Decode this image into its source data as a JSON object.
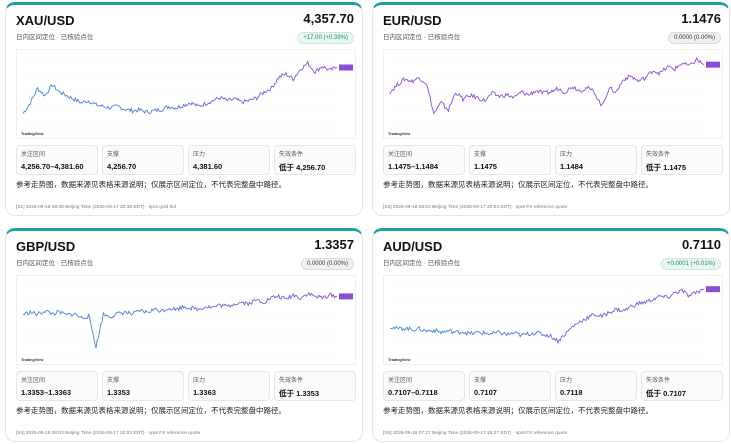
{
  "cards": [
    {
      "pair": "XAU/USD",
      "price": "4,357.70",
      "subtitle": "日内区间定位 · 已核验点位",
      "change": "+17.00 (+0.39%)",
      "change_state": "up",
      "stats": [
        {
          "label": "关注区间",
          "value": "4,256.70–4,381.60"
        },
        {
          "label": "支撑",
          "value": "4,256.70"
        },
        {
          "label": "压力",
          "value": "4,381.60"
        },
        {
          "label": "失效条件",
          "value": "低于 4,256.70"
        }
      ],
      "note": "参考走势图，数据来源见表格来源说明；仅展示区间定位，不代表完整盘中路径。",
      "footer": "[S1] 2026-09-18 08:38 Beijing Time (2026-09-17 20:38 EDT) · spot gold bid",
      "watermark": "TradingView",
      "trend": [
        0.2,
        0.35,
        0.55,
        0.45,
        0.6,
        0.5,
        0.45,
        0.4,
        0.35,
        0.38,
        0.32,
        0.3,
        0.28,
        0.3,
        0.26,
        0.24,
        0.25,
        0.22,
        0.24,
        0.26,
        0.3,
        0.28,
        0.32,
        0.35,
        0.3,
        0.34,
        0.38,
        0.42,
        0.38,
        0.4,
        0.36,
        0.38,
        0.42,
        0.5,
        0.55,
        0.7,
        0.75,
        0.68,
        0.82,
        0.9,
        0.78,
        0.86,
        0.8,
        0.84
      ],
      "line_color_start": "#3d8fd6",
      "line_color_end": "#8a4fd6"
    },
    {
      "pair": "EUR/USD",
      "price": "1.1476",
      "subtitle": "日内区间定位 · 已核验点位",
      "change": "0.0000 (0.00%)",
      "change_state": "flat",
      "stats": [
        {
          "label": "关注区间",
          "value": "1.1475–1.1484"
        },
        {
          "label": "支撑",
          "value": "1.1475"
        },
        {
          "label": "压力",
          "value": "1.1484"
        },
        {
          "label": "失效条件",
          "value": "低于 1.1475"
        }
      ],
      "note": "参考走势图，数据来源见表格来源说明；仅展示区间定位，不代表完整盘中路径。",
      "footer": "[S3] 2026-09-18 08:03 Beijing Time (2026-09-17 20:03 EDT) · spot FX reference quote",
      "watermark": "TradingView",
      "trend": [
        0.5,
        0.6,
        0.68,
        0.65,
        0.7,
        0.62,
        0.2,
        0.35,
        0.25,
        0.5,
        0.4,
        0.45,
        0.42,
        0.38,
        0.48,
        0.44,
        0.46,
        0.42,
        0.5,
        0.46,
        0.52,
        0.48,
        0.5,
        0.55,
        0.5,
        0.58,
        0.52,
        0.56,
        0.5,
        0.3,
        0.55,
        0.5,
        0.68,
        0.72,
        0.65,
        0.7,
        0.8,
        0.76,
        0.85,
        0.82,
        0.9,
        0.86,
        0.95,
        0.88
      ],
      "line_color_start": "#8a4fd6",
      "line_color_end": "#8a4fd6"
    },
    {
      "pair": "GBP/USD",
      "price": "1.3357",
      "subtitle": "日内区间定位 · 已核验点位",
      "change": "0.0000 (0.00%)",
      "change_state": "flat",
      "stats": [
        {
          "label": "关注区间",
          "value": "1.3353–1.3363"
        },
        {
          "label": "支撑",
          "value": "1.3353"
        },
        {
          "label": "压力",
          "value": "1.3363"
        },
        {
          "label": "失效条件",
          "value": "低于 1.3353"
        }
      ],
      "note": "参考走势图，数据来源见表格来源说明；仅展示区间定位，不代表完整盘中路径。",
      "footer": "[S4] 2026-09-18 08:03 Beijing Time (2026-09-17 20:03 EDT) · spot FX reference quote",
      "watermark": "TradingView",
      "trend": [
        0.55,
        0.58,
        0.55,
        0.6,
        0.56,
        0.58,
        0.54,
        0.56,
        0.5,
        0.53,
        0.1,
        0.55,
        0.52,
        0.56,
        0.58,
        0.55,
        0.6,
        0.58,
        0.62,
        0.6,
        0.64,
        0.62,
        0.66,
        0.64,
        0.62,
        0.66,
        0.65,
        0.68,
        0.66,
        0.7,
        0.72,
        0.7,
        0.75,
        0.72,
        0.78,
        0.8,
        0.76,
        0.82,
        0.78,
        0.84,
        0.8,
        0.78,
        0.82,
        0.8
      ],
      "line_color_start": "#3d8fd6",
      "line_color_end": "#8a4fd6"
    },
    {
      "pair": "AUD/USD",
      "price": "0.7110",
      "subtitle": "日内区间定位 · 已核验点位",
      "change": "+0.0001 (+0.01%)",
      "change_state": "up",
      "stats": [
        {
          "label": "关注区间",
          "value": "0.7107–0.7118"
        },
        {
          "label": "支撑",
          "value": "0.7107"
        },
        {
          "label": "压力",
          "value": "0.7118"
        },
        {
          "label": "失效条件",
          "value": "低于 0.7107"
        }
      ],
      "note": "参考走势图，数据来源见表格来源说明；仅展示区间定位，不代表完整盘中路径。",
      "footer": "[S5] 2026-09-18 07:27 Beijing Time (2026-09-17 19:27 EDT) · spot FX reference quote",
      "watermark": "TradingView",
      "trend": [
        0.38,
        0.35,
        0.36,
        0.34,
        0.35,
        0.32,
        0.33,
        0.3,
        0.32,
        0.3,
        0.31,
        0.28,
        0.3,
        0.29,
        0.28,
        0.3,
        0.27,
        0.29,
        0.26,
        0.28,
        0.3,
        0.27,
        0.25,
        0.18,
        0.28,
        0.38,
        0.45,
        0.5,
        0.55,
        0.52,
        0.58,
        0.62,
        0.6,
        0.66,
        0.7,
        0.72,
        0.76,
        0.8,
        0.78,
        0.85,
        0.88,
        0.8,
        0.86,
        0.9
      ],
      "line_color_start": "#3d8fd6",
      "line_color_end": "#8a4fd6"
    }
  ]
}
